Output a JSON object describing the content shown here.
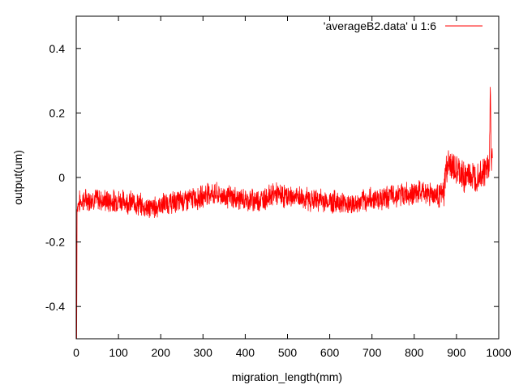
{
  "chart_data": {
    "type": "line",
    "title": "",
    "xlabel": "migration_length(mm)",
    "ylabel": "output(um)",
    "xlim": [
      0,
      1000
    ],
    "ylim": [
      -0.5,
      0.5
    ],
    "x_ticks": [
      0,
      100,
      200,
      300,
      400,
      500,
      600,
      700,
      800,
      900,
      1000
    ],
    "x_tick_labels": [
      "0",
      "100",
      "200",
      "300",
      "400",
      "500",
      "600",
      "700",
      "800",
      "900",
      "1000"
    ],
    "y_ticks": [
      -0.4,
      -0.2,
      0,
      0.2,
      0.4
    ],
    "y_tick_labels": [
      "-0.4",
      "-0.2",
      "0",
      "0.2",
      "0.4"
    ],
    "grid": false,
    "legend_position": "top-right",
    "series": [
      {
        "name": "'averageB2.data' u 1:6",
        "color": "#ff0000",
        "x": [
          0,
          1,
          2,
          3,
          5,
          10,
          20,
          40,
          60,
          80,
          100,
          120,
          140,
          160,
          180,
          200,
          220,
          240,
          260,
          280,
          300,
          310,
          320,
          340,
          360,
          380,
          400,
          420,
          440,
          460,
          470,
          480,
          500,
          520,
          540,
          560,
          580,
          600,
          620,
          640,
          660,
          680,
          700,
          720,
          740,
          760,
          780,
          800,
          820,
          840,
          860,
          870,
          875,
          880,
          890,
          900,
          910,
          920,
          930,
          940,
          950,
          960,
          970,
          975,
          978,
          980,
          982,
          985
        ],
        "y": [
          -0.06,
          -0.5,
          -0.1,
          -0.09,
          -0.08,
          -0.075,
          -0.07,
          -0.065,
          -0.07,
          -0.075,
          -0.07,
          -0.075,
          -0.08,
          -0.09,
          -0.095,
          -0.085,
          -0.08,
          -0.075,
          -0.07,
          -0.065,
          -0.06,
          -0.045,
          -0.05,
          -0.055,
          -0.06,
          -0.065,
          -0.07,
          -0.07,
          -0.068,
          -0.055,
          -0.05,
          -0.055,
          -0.06,
          -0.06,
          -0.065,
          -0.07,
          -0.07,
          -0.075,
          -0.075,
          -0.08,
          -0.085,
          -0.075,
          -0.065,
          -0.065,
          -0.06,
          -0.055,
          -0.05,
          -0.05,
          -0.045,
          -0.05,
          -0.055,
          -0.05,
          0.02,
          0.04,
          0.03,
          0.02,
          0.01,
          0.0,
          0.01,
          0.0,
          0.01,
          0.02,
          0.02,
          0.04,
          0.05,
          0.28,
          0.06,
          0.06
        ]
      }
    ]
  }
}
